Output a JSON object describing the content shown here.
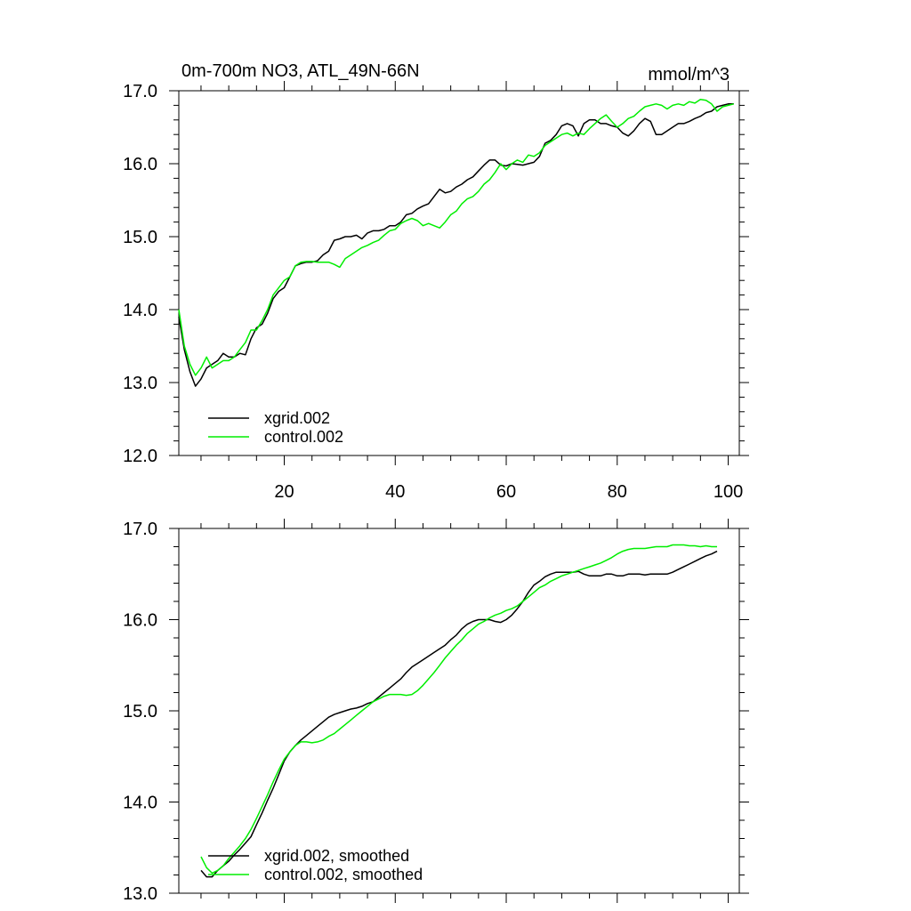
{
  "chart_data": [
    {
      "type": "line",
      "title": "0m-700m NO3, ATL_49N-66N",
      "units": "mmol/m^3",
      "xlabel": "",
      "ylabel": "",
      "xlim": [
        1,
        102
      ],
      "ylim": [
        12.0,
        17.0
      ],
      "xticks": [
        20,
        40,
        60,
        80,
        100
      ],
      "yticks": [
        "12.0",
        "13.0",
        "14.0",
        "15.0",
        "16.0",
        "17.0"
      ],
      "show_x_tick_labels": true,
      "legend_position": "bottom-left",
      "series": [
        {
          "name": "xgrid.002",
          "color": "#000000",
          "x": [
            1,
            2,
            3,
            4,
            5,
            6,
            7,
            8,
            9,
            10,
            11,
            12,
            13,
            14,
            15,
            16,
            17,
            18,
            19,
            20,
            21,
            22,
            23,
            24,
            25,
            26,
            27,
            28,
            29,
            30,
            31,
            32,
            33,
            34,
            35,
            36,
            37,
            38,
            39,
            40,
            41,
            42,
            43,
            44,
            45,
            46,
            47,
            48,
            49,
            50,
            51,
            52,
            53,
            54,
            55,
            56,
            57,
            58,
            59,
            60,
            61,
            62,
            63,
            64,
            65,
            66,
            67,
            68,
            69,
            70,
            71,
            72,
            73,
            74,
            75,
            76,
            77,
            78,
            79,
            80,
            81,
            82,
            83,
            84,
            85,
            86,
            87,
            88,
            89,
            90,
            91,
            92,
            93,
            94,
            95,
            96,
            97,
            98,
            99,
            100,
            101
          ],
          "y": [
            13.9,
            13.45,
            13.15,
            12.95,
            13.05,
            13.2,
            13.25,
            13.3,
            13.4,
            13.35,
            13.35,
            13.4,
            13.38,
            13.6,
            13.75,
            13.8,
            13.95,
            14.15,
            14.25,
            14.3,
            14.45,
            14.6,
            14.63,
            14.65,
            14.65,
            14.67,
            14.75,
            14.8,
            14.95,
            14.97,
            15.0,
            15.0,
            15.02,
            14.97,
            15.05,
            15.08,
            15.08,
            15.1,
            15.15,
            15.15,
            15.2,
            15.3,
            15.32,
            15.38,
            15.42,
            15.45,
            15.55,
            15.65,
            15.6,
            15.62,
            15.68,
            15.72,
            15.78,
            15.82,
            15.9,
            15.98,
            16.05,
            16.05,
            15.98,
            15.97,
            16.0,
            15.99,
            15.98,
            16.0,
            16.02,
            16.1,
            16.28,
            16.32,
            16.4,
            16.52,
            16.55,
            16.52,
            16.38,
            16.55,
            16.6,
            16.6,
            16.55,
            16.55,
            16.52,
            16.5,
            16.42,
            16.38,
            16.45,
            16.55,
            16.62,
            16.58,
            16.4,
            16.4,
            16.45,
            16.5,
            16.55,
            16.55,
            16.58,
            16.62,
            16.65,
            16.7,
            16.72,
            16.78,
            16.8,
            16.82,
            16.82
          ]
        },
        {
          "name": "control.002",
          "color": "#00ee00",
          "x": [
            1,
            2,
            3,
            4,
            5,
            6,
            7,
            8,
            9,
            10,
            11,
            12,
            13,
            14,
            15,
            16,
            17,
            18,
            19,
            20,
            21,
            22,
            23,
            24,
            25,
            26,
            27,
            28,
            29,
            30,
            31,
            32,
            33,
            34,
            35,
            36,
            37,
            38,
            39,
            40,
            41,
            42,
            43,
            44,
            45,
            46,
            47,
            48,
            49,
            50,
            51,
            52,
            53,
            54,
            55,
            56,
            57,
            58,
            59,
            60,
            61,
            62,
            63,
            64,
            65,
            66,
            67,
            68,
            69,
            70,
            71,
            72,
            73,
            74,
            75,
            76,
            77,
            78,
            79,
            80,
            81,
            82,
            83,
            84,
            85,
            86,
            87,
            88,
            89,
            90,
            91,
            92,
            93,
            94,
            95,
            96,
            97,
            98,
            99,
            100,
            101
          ],
          "y": [
            14.0,
            13.5,
            13.25,
            13.1,
            13.2,
            13.35,
            13.2,
            13.25,
            13.3,
            13.3,
            13.35,
            13.45,
            13.55,
            13.72,
            13.72,
            13.85,
            14.0,
            14.2,
            14.3,
            14.4,
            14.45,
            14.6,
            14.65,
            14.66,
            14.66,
            14.65,
            14.65,
            14.65,
            14.62,
            14.58,
            14.7,
            14.75,
            14.8,
            14.85,
            14.88,
            14.92,
            14.95,
            15.02,
            15.08,
            15.1,
            15.18,
            15.22,
            15.25,
            15.22,
            15.15,
            15.18,
            15.15,
            15.12,
            15.2,
            15.3,
            15.35,
            15.45,
            15.52,
            15.55,
            15.62,
            15.72,
            15.78,
            15.88,
            16.0,
            15.92,
            16.0,
            16.05,
            16.02,
            16.12,
            16.1,
            16.15,
            16.25,
            16.3,
            16.35,
            16.4,
            16.42,
            16.38,
            16.42,
            16.4,
            16.48,
            16.55,
            16.62,
            16.67,
            16.58,
            16.5,
            16.55,
            16.62,
            16.65,
            16.72,
            16.78,
            16.8,
            16.82,
            16.8,
            16.75,
            16.8,
            16.82,
            16.8,
            16.85,
            16.83,
            16.88,
            16.87,
            16.82,
            16.72,
            16.78,
            16.8,
            16.82
          ]
        }
      ]
    },
    {
      "type": "line",
      "title": "",
      "units": "",
      "xlabel": "",
      "ylabel": "",
      "xlim": [
        1,
        102
      ],
      "ylim": [
        13.0,
        17.0
      ],
      "xticks": [
        20,
        40,
        60,
        80,
        100
      ],
      "yticks": [
        "13.0",
        "14.0",
        "15.0",
        "16.0",
        "17.0"
      ],
      "show_x_tick_labels": false,
      "legend_position": "bottom-left",
      "series": [
        {
          "name": "xgrid.002, smoothed",
          "color": "#000000",
          "x": [
            5,
            6,
            7,
            8,
            9,
            10,
            11,
            12,
            13,
            14,
            15,
            16,
            17,
            18,
            19,
            20,
            21,
            22,
            23,
            24,
            25,
            26,
            27,
            28,
            29,
            30,
            31,
            32,
            33,
            34,
            35,
            36,
            37,
            38,
            39,
            40,
            41,
            42,
            43,
            44,
            45,
            46,
            47,
            48,
            49,
            50,
            51,
            52,
            53,
            54,
            55,
            56,
            57,
            58,
            59,
            60,
            61,
            62,
            63,
            64,
            65,
            66,
            67,
            68,
            69,
            70,
            71,
            72,
            73,
            74,
            75,
            76,
            77,
            78,
            79,
            80,
            81,
            82,
            83,
            84,
            85,
            86,
            87,
            88,
            89,
            90,
            91,
            92,
            93,
            94,
            95,
            96,
            97,
            98
          ],
          "y": [
            13.25,
            13.18,
            13.18,
            13.25,
            13.3,
            13.35,
            13.42,
            13.48,
            13.55,
            13.62,
            13.75,
            13.88,
            14.02,
            14.15,
            14.3,
            14.45,
            14.55,
            14.62,
            14.68,
            14.73,
            14.78,
            14.83,
            14.88,
            14.93,
            14.96,
            14.98,
            15.0,
            15.02,
            15.03,
            15.05,
            15.08,
            15.1,
            15.15,
            15.2,
            15.25,
            15.3,
            15.35,
            15.42,
            15.48,
            15.52,
            15.56,
            15.6,
            15.64,
            15.68,
            15.72,
            15.78,
            15.83,
            15.9,
            15.95,
            15.98,
            16.0,
            16.0,
            16.0,
            15.98,
            15.97,
            16.0,
            16.05,
            16.12,
            16.2,
            16.3,
            16.38,
            16.42,
            16.47,
            16.5,
            16.52,
            16.52,
            16.52,
            16.52,
            16.53,
            16.5,
            16.48,
            16.48,
            16.48,
            16.5,
            16.5,
            16.48,
            16.48,
            16.5,
            16.5,
            16.5,
            16.49,
            16.5,
            16.5,
            16.5,
            16.5,
            16.52,
            16.55,
            16.58,
            16.61,
            16.64,
            16.67,
            16.7,
            16.72,
            16.75
          ]
        },
        {
          "name": "control.002, smoothed",
          "color": "#00ee00",
          "x": [
            5,
            6,
            7,
            8,
            9,
            10,
            11,
            12,
            13,
            14,
            15,
            16,
            17,
            18,
            19,
            20,
            21,
            22,
            23,
            24,
            25,
            26,
            27,
            28,
            29,
            30,
            31,
            32,
            33,
            34,
            35,
            36,
            37,
            38,
            39,
            40,
            41,
            42,
            43,
            44,
            45,
            46,
            47,
            48,
            49,
            50,
            51,
            52,
            53,
            54,
            55,
            56,
            57,
            58,
            59,
            60,
            61,
            62,
            63,
            64,
            65,
            66,
            67,
            68,
            69,
            70,
            71,
            72,
            73,
            74,
            75,
            76,
            77,
            78,
            79,
            80,
            81,
            82,
            83,
            84,
            85,
            86,
            87,
            88,
            89,
            90,
            91,
            92,
            93,
            94,
            95,
            96,
            97,
            98
          ],
          "y": [
            13.4,
            13.28,
            13.22,
            13.25,
            13.3,
            13.38,
            13.45,
            13.52,
            13.6,
            13.7,
            13.82,
            13.95,
            14.08,
            14.22,
            14.35,
            14.47,
            14.55,
            14.62,
            14.66,
            14.66,
            14.65,
            14.66,
            14.68,
            14.72,
            14.75,
            14.8,
            14.85,
            14.9,
            14.95,
            15.0,
            15.05,
            15.1,
            15.13,
            15.16,
            15.18,
            15.18,
            15.18,
            15.17,
            15.18,
            15.22,
            15.28,
            15.35,
            15.42,
            15.5,
            15.58,
            15.65,
            15.72,
            15.78,
            15.85,
            15.9,
            15.95,
            15.98,
            16.02,
            16.05,
            16.07,
            16.1,
            16.12,
            16.15,
            16.2,
            16.25,
            16.3,
            16.35,
            16.38,
            16.42,
            16.45,
            16.48,
            16.5,
            16.52,
            16.54,
            16.56,
            16.58,
            16.6,
            16.62,
            16.65,
            16.68,
            16.72,
            16.75,
            16.77,
            16.78,
            16.78,
            16.78,
            16.79,
            16.8,
            16.8,
            16.8,
            16.82,
            16.82,
            16.82,
            16.81,
            16.81,
            16.8,
            16.81,
            16.8,
            16.8
          ]
        }
      ]
    }
  ]
}
